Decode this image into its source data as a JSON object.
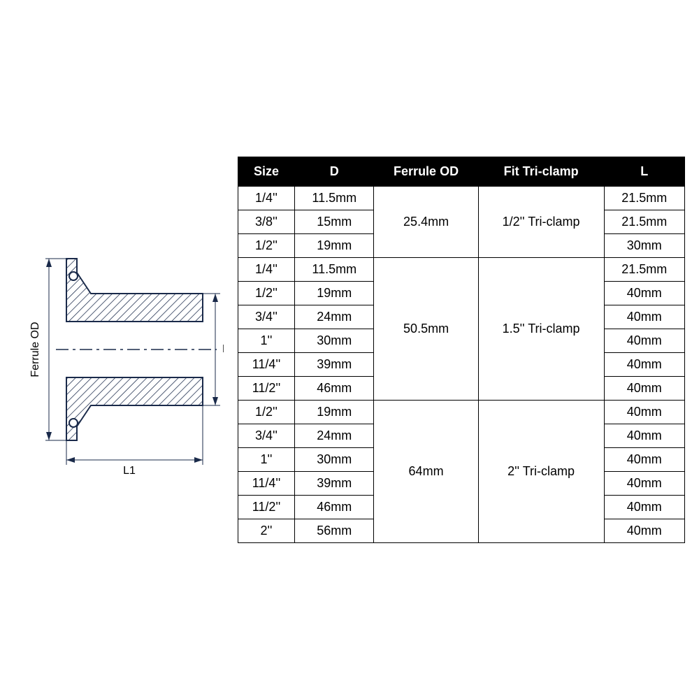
{
  "diagram": {
    "label_ferrule_od": "Ferrule OD",
    "label_d": "D",
    "label_l1": "L1",
    "stroke_color": "#1a2a4a",
    "stroke_width": 2,
    "hatch_color": "#1a2a4a"
  },
  "table": {
    "header_bg": "#000000",
    "header_fg": "#ffffff",
    "border_color": "#000000",
    "cell_bg": "#ffffff",
    "cell_fg": "#000000",
    "font_size": 18,
    "columns": [
      "Size",
      "D",
      "Ferrule OD",
      "Fit Tri-clamp",
      "L"
    ],
    "groups": [
      {
        "ferrule_od": "25.4mm",
        "fit": "1/2'' Tri-clamp",
        "rows": [
          {
            "size": "1/4''",
            "d": "11.5mm",
            "l": "21.5mm"
          },
          {
            "size": "3/8''",
            "d": "15mm",
            "l": "21.5mm"
          },
          {
            "size": "1/2''",
            "d": "19mm",
            "l": "30mm"
          }
        ]
      },
      {
        "ferrule_od": "50.5mm",
        "fit": "1.5'' Tri-clamp",
        "rows": [
          {
            "size": "1/4''",
            "d": "11.5mm",
            "l": "21.5mm"
          },
          {
            "size": "1/2''",
            "d": "19mm",
            "l": "40mm"
          },
          {
            "size": "3/4''",
            "d": "24mm",
            "l": "40mm"
          },
          {
            "size": "1''",
            "d": "30mm",
            "l": "40mm"
          },
          {
            "size": "11/4''",
            "d": "39mm",
            "l": "40mm"
          },
          {
            "size": "11/2''",
            "d": "46mm",
            "l": "40mm"
          }
        ]
      },
      {
        "ferrule_od": "64mm",
        "fit": "2'' Tri-clamp",
        "rows": [
          {
            "size": "1/2''",
            "d": "19mm",
            "l": "40mm"
          },
          {
            "size": "3/4''",
            "d": "24mm",
            "l": "40mm"
          },
          {
            "size": "1''",
            "d": "30mm",
            "l": "40mm"
          },
          {
            "size": "11/4''",
            "d": "39mm",
            "l": "40mm"
          },
          {
            "size": "11/2''",
            "d": "46mm",
            "l": "40mm"
          },
          {
            "size": "2''",
            "d": "56mm",
            "l": "40mm"
          }
        ]
      }
    ]
  }
}
